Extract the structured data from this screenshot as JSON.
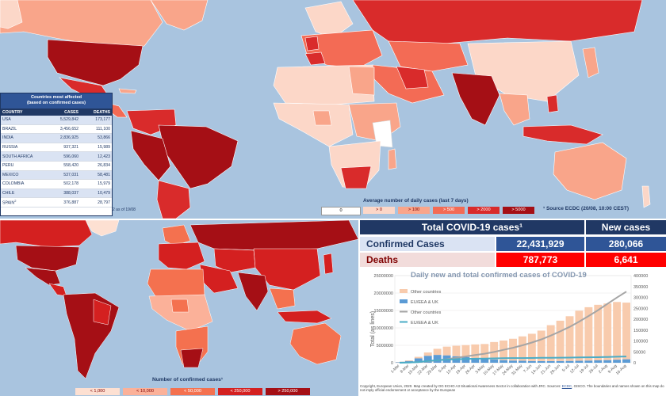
{
  "table": {
    "title_line1": "Countries most affected",
    "title_line2": "(based on confirmed cases)",
    "headers": [
      "COUNTRY",
      "CASES",
      "DEATHS"
    ],
    "rows": [
      [
        "USA",
        "5,529,842",
        "173,177"
      ],
      [
        "BRAZIL",
        "3,456,652",
        "111,100"
      ],
      [
        "INDIA",
        "2,836,925",
        "53,866"
      ],
      [
        "RUSSIA",
        "937,321",
        "15,989"
      ],
      [
        "SOUTH AFRICA",
        "596,060",
        "12,423"
      ],
      [
        "PERU",
        "558,420",
        "26,834"
      ],
      [
        "MEXICO",
        "537,031",
        "58,481"
      ],
      [
        "COLOMBIA",
        "502,178",
        "15,979"
      ],
      [
        "CHILE",
        "388,037",
        "10,479"
      ],
      [
        "SPAIN",
        "376,887",
        "28,797"
      ]
    ],
    "spain_footnote": "2",
    "as_of": "2 as of 19/08"
  },
  "legend_daily": {
    "title": "Average number of daily cases (last 7 days)",
    "items": [
      "0",
      "> 0",
      "> 100",
      "> 500",
      "> 2000",
      "> 5000"
    ],
    "colors": [
      "#ffffff",
      "#fcd7c8",
      "#f9a58a",
      "#f36b55",
      "#d92b2b",
      "#a50f15"
    ],
    "source": "¹ Source ECDC  (20/08, 10:00 CEST)"
  },
  "legend_confirmed": {
    "title": "Number of confirmed cases¹",
    "items": [
      "< 1,000",
      "< 10,000",
      "< 50,000",
      "< 250,000",
      "> 250,000"
    ],
    "colors": [
      "#fde0d2",
      "#fbb199",
      "#f4714f",
      "#d42020",
      "#a50f15"
    ]
  },
  "stats": {
    "total_header": "Total COVID-19 cases¹",
    "new_header": "New cases",
    "confirmed_label": "Confirmed Cases",
    "confirmed_total": "22,431,929",
    "confirmed_new": "280,066",
    "deaths_label": "Deaths",
    "deaths_total": "787,773",
    "deaths_new": "6,641"
  },
  "chart_data": {
    "type": "bar",
    "title": "Daily new and total confirmed cases of COVID-19",
    "ylabel": "Total (as lines)",
    "y_left_ticks": [
      "0",
      "5000000",
      "10000000",
      "15000000",
      "20000000",
      "25000000"
    ],
    "y_right_ticks": [
      "0",
      "50000",
      "100000",
      "150000",
      "200000",
      "250000",
      "300000",
      "350000",
      "400000"
    ],
    "x_ticks": [
      "1-Mar",
      "8-Mar",
      "15-Mar",
      "22-Mar",
      "29-Mar",
      "5-Apr",
      "12-Apr",
      "19-Apr",
      "26-Apr",
      "3-May",
      "10-May",
      "17-May",
      "24-May",
      "31-May",
      "7-Jun",
      "14-Jun",
      "21-Jun",
      "28-Jun",
      "5-Jul",
      "12-Jul",
      "19-Jul",
      "26-Jul",
      "2-Aug",
      "9-Aug",
      "16-Aug"
    ],
    "legend": [
      "Other countries",
      "EU/EEA & UK",
      "Other countries",
      "EU/EEA & UK"
    ],
    "legend_colors": [
      "#f8cbad",
      "#5b9bd5",
      "#a5a5a5",
      "#4bacc6"
    ],
    "series": [
      {
        "name": "Other countries",
        "values": [
          1000,
          3000,
          7000,
          15000,
          28000,
          40000,
          48000,
          55000,
          62000,
          68000,
          80000,
          90000,
          100000,
          112000,
          125000,
          140000,
          165000,
          185000,
          205000,
          230000,
          245000,
          255000,
          260000,
          265000,
          260000
        ]
      },
      {
        "name": "EU/EEA & UK",
        "values": [
          2000,
          8000,
          20000,
          32000,
          36000,
          34000,
          30000,
          26000,
          22000,
          18000,
          15000,
          12000,
          10000,
          9000,
          8000,
          7500,
          7500,
          8000,
          8500,
          9000,
          10000,
          11000,
          12000,
          14000,
          16000
        ]
      },
      {
        "name": "Other countries",
        "values": [
          0.05,
          0.1,
          0.2,
          0.4,
          0.7,
          1.0,
          1.4,
          1.8,
          2.2,
          2.6,
          3.1,
          3.7,
          4.3,
          5.0,
          5.8,
          6.7,
          7.8,
          9.0,
          10.3,
          11.8,
          13.4,
          15.1,
          16.9,
          18.7,
          20.4
        ]
      },
      {
        "name": "EU/EEA & UK",
        "values": [
          0.01,
          0.05,
          0.2,
          0.5,
          0.7,
          0.9,
          1.0,
          1.1,
          1.15,
          1.2,
          1.25,
          1.3,
          1.33,
          1.35,
          1.37,
          1.4,
          1.42,
          1.45,
          1.48,
          1.52,
          1.56,
          1.6,
          1.66,
          1.73,
          1.8
        ]
      }
    ],
    "ylim": [
      0,
      25000000
    ],
    "y2lim": [
      0,
      400000
    ]
  },
  "copyright": {
    "text1": "Copyright, European Union, 2020. Map created by DG ECHO A3 Situational Awareness Sector in collaboration with JRC. Sources:",
    "ecdc": "ECDC",
    "text2": ", GISCO. The boundaries and names shown on this map do not imply official endorsement or acceptance  by the European"
  }
}
